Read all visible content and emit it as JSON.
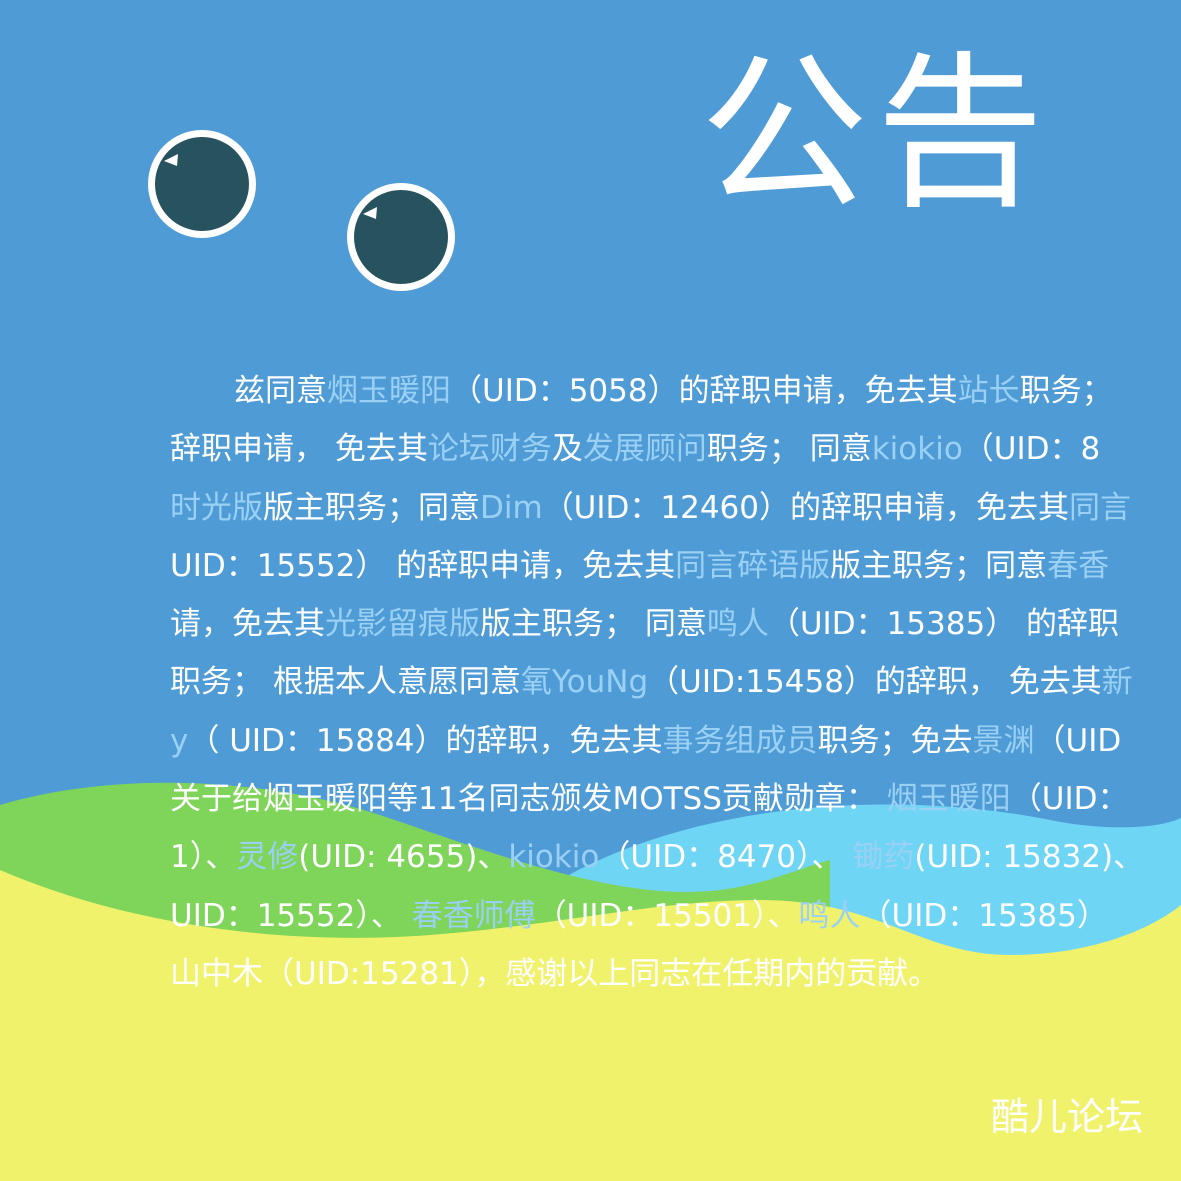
{
  "title": "公告",
  "brand": "酷儿论坛",
  "colors": {
    "background": "#4f9bd6",
    "green_wave": "#7fd45a",
    "cyan_wave": "#6fd5f5",
    "yellow_wave": "#f1f26c",
    "eye_pupil": "#27535f",
    "highlight_text": "#9ad0f4"
  },
  "lines": [
    [
      {
        "t": "兹同意"
      },
      {
        "t": "烟玉暖阳",
        "h": true
      },
      {
        "t": "（UID：5058）的辞职申请，免去其"
      },
      {
        "t": "站长",
        "h": true
      },
      {
        "t": "职务；"
      }
    ],
    [
      {
        "t": "辞职申请， 免去其"
      },
      {
        "t": "论坛财务",
        "h": true
      },
      {
        "t": "及"
      },
      {
        "t": "发展顾问",
        "h": true
      },
      {
        "t": "职务； 同意"
      },
      {
        "t": "kiokio",
        "h": true
      },
      {
        "t": "（UID：8"
      }
    ],
    [
      {
        "t": "时光版",
        "h": true
      },
      {
        "t": "版主职务；同意"
      },
      {
        "t": "Dim",
        "h": true
      },
      {
        "t": "（UID：12460）的辞职申请，免去其"
      },
      {
        "t": "同言",
        "h": true
      }
    ],
    [
      {
        "t": "UID：15552） 的辞职申请，免去其"
      },
      {
        "t": "同言碎语版",
        "h": true
      },
      {
        "t": "版主职务；同意"
      },
      {
        "t": "春香",
        "h": true
      }
    ],
    [
      {
        "t": "请，免去其"
      },
      {
        "t": "光影留痕版",
        "h": true
      },
      {
        "t": "版主职务； 同意"
      },
      {
        "t": "鸣人",
        "h": true
      },
      {
        "t": "（UID：15385） 的辞职"
      }
    ],
    [
      {
        "t": "职务； 根据本人意愿同意"
      },
      {
        "t": "氧YouNg",
        "h": true
      },
      {
        "t": "（UID:15458）的辞职， 免去其"
      },
      {
        "t": "新",
        "h": true
      }
    ],
    [
      {
        "t": "y",
        "h": true
      },
      {
        "t": "（ UID：15884）的辞职，免去其"
      },
      {
        "t": "事务组成员",
        "h": true
      },
      {
        "t": "职务；免去"
      },
      {
        "t": "景渊",
        "h": true
      },
      {
        "t": "（UID"
      }
    ],
    [
      {
        "t": "关于给烟玉暖阳等11名同志颁发MOTSS贡献勋章： "
      },
      {
        "t": "烟玉暖阳",
        "h": true
      },
      {
        "t": "（UID："
      }
    ],
    [
      {
        "t": "1）、"
      },
      {
        "t": "灵修",
        "h": true
      },
      {
        "t": "(UID: 4655)、"
      },
      {
        "t": "kiokio",
        "h": true
      },
      {
        "t": "（UID：8470）、 "
      },
      {
        "t": "锄药",
        "h": true
      },
      {
        "t": "(UID: 15832)、"
      }
    ],
    [
      {
        "t": "UID：15552）、 "
      },
      {
        "t": "春香师傅",
        "h": true
      },
      {
        "t": "（UID：15501）、"
      },
      {
        "t": "鸣人",
        "h": true
      },
      {
        "t": "（UID：15385）"
      }
    ],
    [
      {
        "t": "山中木",
        "h": true
      },
      {
        "t": "（UID:"
      },
      {
        "t": "15281",
        "h": true
      },
      {
        "t": "），感谢以上同志在任期内的贡献。"
      }
    ]
  ]
}
